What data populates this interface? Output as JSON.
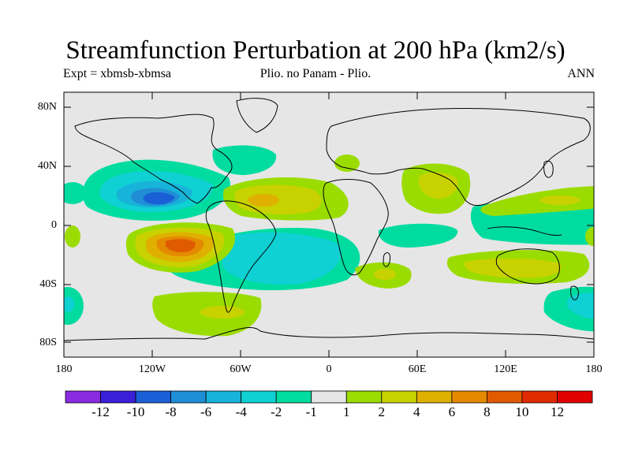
{
  "title": "Streamfunction Perturbation at 200 hPa (km2/s)",
  "subtitle_left": "Expt = xbmsb-xbmsa",
  "subtitle_center": "Plio. no Panam - Plio.",
  "subtitle_right": "ANN",
  "y_ticks": [
    "80N",
    "40N",
    "0",
    "40S",
    "80S"
  ],
  "x_ticks": [
    "180",
    "120W",
    "60W",
    "0",
    "60E",
    "120E",
    "180"
  ],
  "colorbar": {
    "labels": [
      "-12",
      "-10",
      "-8",
      "-6",
      "-4",
      "-2",
      "-1",
      "1",
      "2",
      "4",
      "6",
      "8",
      "10",
      "12"
    ],
    "colors": [
      "#8a2be2",
      "#3a1fd6",
      "#1a5fd6",
      "#1f8ed6",
      "#18b3d8",
      "#0fd0d3",
      "#00dca0",
      "#e6e6e6",
      "#9bdc00",
      "#c8d200",
      "#e0b000",
      "#e48a00",
      "#e05a00",
      "#e02a00",
      "#e00000"
    ]
  },
  "colors": {
    "background_map": "#e6e6e6",
    "coastline": "#000000"
  }
}
